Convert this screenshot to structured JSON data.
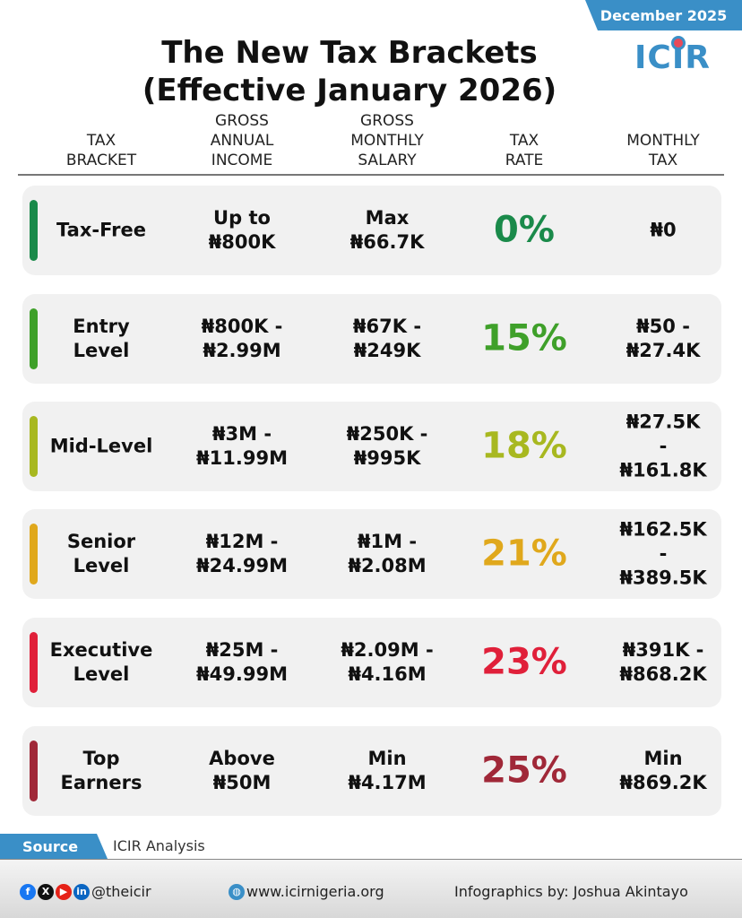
{
  "date_label": "December 2025",
  "logo": "ICIR",
  "title_line1": "The New Tax Brackets",
  "title_line2": "(Effective January 2026)",
  "columns": [
    "TAX\nBRACKET",
    "GROSS\nANNUAL\nINCOME",
    "GROSS\nMONTHLY\nSALARY",
    "TAX\nRATE",
    "MONTHLY\nTAX"
  ],
  "rows": [
    {
      "bracket": "Tax-Free",
      "annual": "Up to\n₦800K",
      "monthly": "Max\n₦66.7K",
      "rate": "0%",
      "tax": "₦0",
      "color": "#1a8a4a"
    },
    {
      "bracket": "Entry\nLevel",
      "annual": "₦800K -\n₦2.99M",
      "monthly": "₦67K -\n₦249K",
      "rate": "15%",
      "tax": "₦50 -\n₦27.4K",
      "color": "#3fa02a"
    },
    {
      "bracket": "Mid-Level",
      "annual": "₦3M -\n₦11.99M",
      "monthly": "₦250K -\n₦995K",
      "rate": "18%",
      "tax": "₦27.5K -\n₦161.8K",
      "color": "#a8b820"
    },
    {
      "bracket": "Senior\nLevel",
      "annual": "₦12M -\n₦24.99M",
      "monthly": "₦1M -\n₦2.08M",
      "rate": "21%",
      "tax": "₦162.5K -\n₦389.5K",
      "color": "#e0a81c"
    },
    {
      "bracket": "Executive\nLevel",
      "annual": "₦25M -\n₦49.99M",
      "monthly": "₦2.09M -\n₦4.16M",
      "rate": "23%",
      "tax": "₦391K -\n₦868.2K",
      "color": "#e0203a"
    },
    {
      "bracket": "Top\nEarners",
      "annual": "Above\n₦50M",
      "monthly": "Min\n₦4.17M",
      "rate": "25%",
      "tax": "Min\n₦869.2K",
      "color": "#a02838"
    }
  ],
  "source_label": "Source",
  "source_text": "ICIR Analysis",
  "footer": {
    "handle": "@theicir",
    "website": "www.icirnigeria.org",
    "credit": "Infographics by: Joshua Akintayo"
  }
}
